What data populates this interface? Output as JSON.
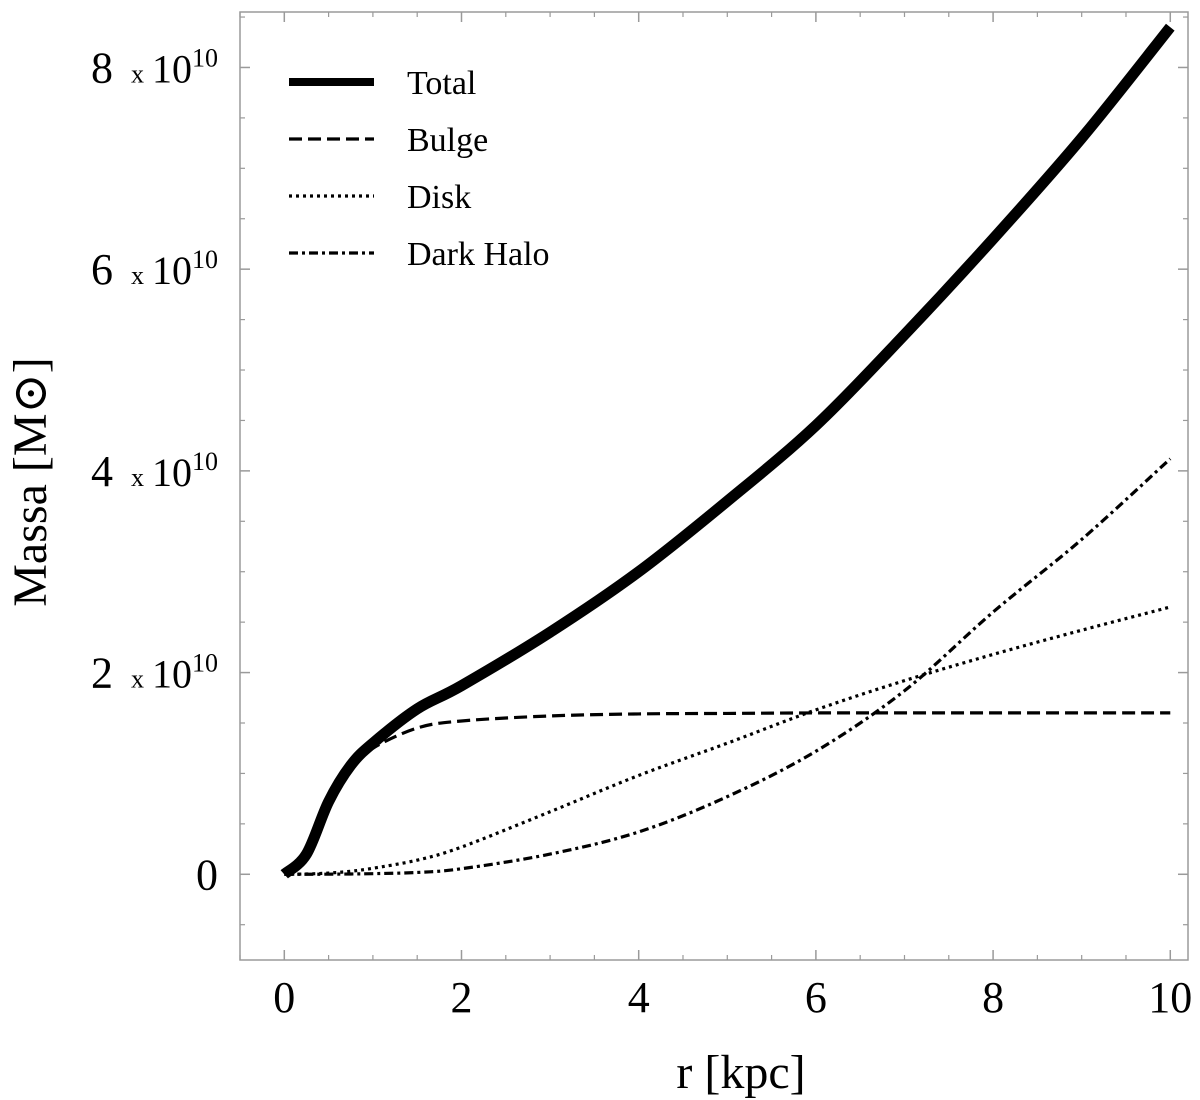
{
  "chart_data": {
    "type": "line",
    "xlabel": "r [kpc]",
    "ylabel": "Massa [M⊙]",
    "xlim": [
      -0.5,
      10.2
    ],
    "ylim": [
      -8500000000.0,
      85500000000.0
    ],
    "x_ticks": [
      0,
      2,
      4,
      6,
      8,
      10
    ],
    "y_ticks": [
      {
        "value": 0,
        "mantissa": "0",
        "exponent": ""
      },
      {
        "value": 20000000000.0,
        "mantissa": "2",
        "exponent": "10"
      },
      {
        "value": 40000000000.0,
        "mantissa": "4",
        "exponent": "10"
      },
      {
        "value": 60000000000.0,
        "mantissa": "6",
        "exponent": "10"
      },
      {
        "value": 80000000000.0,
        "mantissa": "8",
        "exponent": "10"
      }
    ],
    "y_tick_times": "x",
    "y_tick_base": "10",
    "grid": false,
    "legend_position": "top-left",
    "x": [
      0,
      0.25,
      0.5,
      0.75,
      1,
      1.5,
      2,
      3,
      4,
      5,
      6,
      7,
      8,
      9,
      10
    ],
    "series": [
      {
        "name": "Total",
        "style": "solid-thick",
        "values": [
          0,
          2000000000.0,
          7200000000.0,
          10800000000.0,
          13000000000.0,
          16400000000.0,
          18700000000.0,
          24000000000.0,
          30000000000.0,
          37000000000.0,
          44500000000.0,
          53500000000.0,
          63000000000.0,
          73000000000.0,
          84000000000.0
        ]
      },
      {
        "name": "Bulge",
        "style": "dashed",
        "values": [
          0,
          1800000000.0,
          6500000000.0,
          10500000000.0,
          12500000000.0,
          14500000000.0,
          15200000000.0,
          15700000000.0,
          15900000000.0,
          15950000000.0,
          16000000000.0,
          16000000000.0,
          16000000000.0,
          16000000000.0,
          16000000000.0
        ]
      },
      {
        "name": "Disk",
        "style": "dotted",
        "values": [
          0,
          30000000.0,
          120000000.0,
          300000000.0,
          600000000.0,
          1400000000.0,
          2700000000.0,
          6200000000.0,
          9800000000.0,
          13000000000.0,
          16300000000.0,
          19200000000.0,
          21800000000.0,
          24200000000.0,
          26500000000.0
        ]
      },
      {
        "name": "Dark Halo",
        "style": "dashdot",
        "values": [
          0,
          2000000.0,
          10000000.0,
          30000000.0,
          60000000.0,
          180000000.0,
          550000000.0,
          2000000000.0,
          4200000000.0,
          7700000000.0,
          12200000000.0,
          18200000000.0,
          26000000000.0,
          33200000000.0,
          41200000000.0
        ]
      }
    ]
  }
}
